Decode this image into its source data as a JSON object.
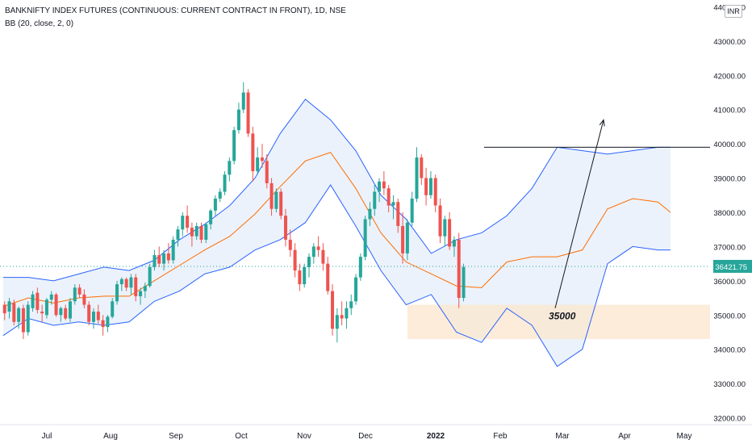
{
  "header": {
    "title": "BANKNIFTY INDEX FUTURES (CONTINUOUS: CURRENT CONTRACT IN FRONT), 1D, NSE",
    "indicator": "BB (20, close, 2, 0)",
    "currency": "INR"
  },
  "colors": {
    "up": "#26a69a",
    "down": "#ef5350",
    "band": "#2962ff",
    "basis": "#ff6d00",
    "band_fill": "#e3ecf9",
    "zone_fill": "#fbe7cf",
    "price_tag": "#26a69a",
    "grid_axis_text": "#131722"
  },
  "chart_data": {
    "type": "candlestick",
    "title": "BANKNIFTY INDEX FUTURES (CONTINUOUS: CURRENT CONTRACT IN FRONT), 1D, NSE",
    "indicator": "BB (20, close, 2, 0)",
    "y_ticks": [
      "44000.00",
      "43000.00",
      "42000.00",
      "41000.00",
      "40000.00",
      "39000.00",
      "38000.00",
      "37000.00",
      "36000.00",
      "35000.00",
      "34000.00",
      "33000.00",
      "32000.00"
    ],
    "ylim": [
      31800,
      44200
    ],
    "x_ticks": [
      "Jul",
      "Aug",
      "Sep",
      "Oct",
      "Nov",
      "Dec",
      "2022",
      "Feb",
      "Mar",
      "Apr",
      "May"
    ],
    "last_price": "36421.75",
    "last_price_value": 36421.75,
    "resistance_level": 39900,
    "support_zone": [
      34300,
      35300
    ],
    "annotation": "35000",
    "annotation_value": 35000,
    "target_arrow": {
      "from_value": 35200,
      "to_value": 40700
    },
    "bb_points": [
      [
        0,
        36100,
        34400,
        35250
      ],
      [
        10,
        36100,
        34900,
        35500
      ],
      [
        20,
        36000,
        34700,
        35350
      ],
      [
        30,
        36200,
        34800,
        35500
      ],
      [
        40,
        36400,
        34700,
        35550
      ],
      [
        50,
        36300,
        34800,
        35550
      ],
      [
        60,
        36600,
        35400,
        36000
      ],
      [
        70,
        37200,
        35700,
        36450
      ],
      [
        80,
        37650,
        36200,
        36900
      ],
      [
        90,
        38200,
        36400,
        37300
      ],
      [
        100,
        39000,
        36900,
        37950
      ],
      [
        110,
        40300,
        37200,
        38750
      ],
      [
        120,
        41300,
        37700,
        39500
      ],
      [
        130,
        40700,
        38800,
        39750
      ],
      [
        140,
        39800,
        37600,
        38700
      ],
      [
        150,
        38500,
        36300,
        37400
      ],
      [
        160,
        37800,
        35300,
        36550
      ],
      [
        170,
        36800,
        35600,
        36200
      ],
      [
        180,
        37200,
        34500,
        35850
      ],
      [
        190,
        37400,
        34200,
        35800
      ],
      [
        200,
        37900,
        35200,
        36550
      ],
      [
        210,
        38700,
        34700,
        36700
      ],
      [
        220,
        39900,
        33500,
        36700
      ],
      [
        230,
        39800,
        34000,
        36900
      ],
      [
        240,
        39700,
        36500,
        38100
      ],
      [
        250,
        39800,
        37000,
        38400
      ],
      [
        260,
        39900,
        36900,
        38300
      ],
      [
        265,
        39900,
        36900,
        38000
      ]
    ],
    "candles": [
      [
        0,
        35300,
        35400,
        34850,
        35050
      ],
      [
        2,
        35100,
        35500,
        34900,
        35400
      ],
      [
        4,
        35350,
        35450,
        34700,
        34800
      ],
      [
        6,
        34800,
        35250,
        34600,
        35200
      ],
      [
        8,
        35200,
        35300,
        34300,
        34500
      ],
      [
        10,
        34500,
        35400,
        34400,
        35300
      ],
      [
        12,
        35200,
        35700,
        35100,
        35600
      ],
      [
        14,
        35650,
        35800,
        35050,
        35150
      ],
      [
        16,
        35100,
        35300,
        34800,
        35050
      ],
      [
        18,
        35000,
        35500,
        34900,
        35450
      ],
      [
        20,
        35450,
        35700,
        35300,
        35600
      ],
      [
        22,
        35600,
        35650,
        34950,
        35000
      ],
      [
        24,
        35000,
        35250,
        34800,
        35200
      ],
      [
        26,
        35200,
        35300,
        34850,
        34900
      ],
      [
        28,
        34900,
        35500,
        34800,
        35400
      ],
      [
        30,
        35400,
        35900,
        35300,
        35800
      ],
      [
        32,
        35800,
        35900,
        35500,
        35600
      ],
      [
        34,
        35600,
        35750,
        35200,
        35300
      ],
      [
        36,
        35300,
        35400,
        34700,
        34800
      ],
      [
        38,
        34800,
        35200,
        34600,
        35100
      ],
      [
        40,
        35100,
        35300,
        34750,
        34850
      ],
      [
        42,
        34850,
        35000,
        34400,
        34650
      ],
      [
        44,
        34650,
        35000,
        34500,
        34950
      ],
      [
        46,
        34950,
        35500,
        34900,
        35400
      ],
      [
        48,
        35400,
        36000,
        35300,
        35900
      ],
      [
        50,
        35900,
        36100,
        35700,
        36050
      ],
      [
        52,
        36050,
        36100,
        35700,
        35800
      ],
      [
        54,
        35800,
        36200,
        35600,
        36100
      ],
      [
        56,
        36100,
        36200,
        35400,
        35550
      ],
      [
        58,
        35550,
        35800,
        35300,
        35700
      ],
      [
        60,
        35700,
        35950,
        35500,
        35850
      ],
      [
        62,
        35850,
        36500,
        35800,
        36400
      ],
      [
        64,
        36400,
        36900,
        36300,
        36750
      ],
      [
        66,
        36750,
        37000,
        36400,
        36500
      ],
      [
        68,
        36500,
        36900,
        36300,
        36800
      ],
      [
        70,
        36800,
        37100,
        36500,
        36600
      ],
      [
        72,
        36600,
        37300,
        36500,
        37200
      ],
      [
        74,
        37200,
        37600,
        37000,
        37500
      ],
      [
        76,
        37500,
        38000,
        37300,
        37900
      ],
      [
        78,
        37900,
        38200,
        37400,
        37550
      ],
      [
        80,
        37550,
        37700,
        37000,
        37300
      ],
      [
        82,
        37300,
        37700,
        37200,
        37600
      ],
      [
        84,
        37600,
        37700,
        37100,
        37200
      ],
      [
        86,
        37200,
        37700,
        37100,
        37650
      ],
      [
        88,
        37650,
        38100,
        37500,
        38050
      ],
      [
        90,
        38050,
        38500,
        37900,
        38400
      ],
      [
        92,
        38400,
        38700,
        38300,
        38600
      ],
      [
        94,
        38600,
        39200,
        38500,
        39100
      ],
      [
        96,
        39100,
        39600,
        38900,
        39500
      ],
      [
        98,
        39500,
        40500,
        39400,
        40400
      ],
      [
        100,
        40400,
        41200,
        40300,
        41000
      ],
      [
        102,
        41000,
        41800,
        40900,
        41500
      ],
      [
        104,
        41500,
        41600,
        40200,
        40300
      ],
      [
        106,
        40300,
        40500,
        38900,
        39200
      ],
      [
        108,
        39200,
        39900,
        39100,
        39600
      ],
      [
        110,
        39600,
        40000,
        39300,
        39500
      ],
      [
        112,
        39500,
        39700,
        38700,
        38850
      ],
      [
        114,
        38850,
        39000,
        37900,
        38100
      ],
      [
        116,
        38100,
        38700,
        38000,
        38600
      ],
      [
        118,
        38600,
        38700,
        37800,
        37900
      ],
      [
        120,
        37900,
        38100,
        37000,
        37200
      ],
      [
        122,
        37200,
        37500,
        36700,
        36900
      ],
      [
        124,
        36900,
        37100,
        36100,
        36300
      ],
      [
        126,
        36300,
        36500,
        35700,
        35900
      ],
      [
        128,
        35900,
        36500,
        35800,
        36400
      ],
      [
        130,
        36400,
        36800,
        36100,
        36700
      ],
      [
        132,
        36700,
        37100,
        36500,
        37000
      ],
      [
        134,
        37000,
        37300,
        36700,
        36900
      ],
      [
        136,
        36900,
        37100,
        36300,
        36500
      ],
      [
        138,
        36500,
        36700,
        35600,
        35700
      ],
      [
        140,
        35700,
        35900,
        34400,
        34600
      ],
      [
        142,
        34600,
        35200,
        34200,
        35000
      ],
      [
        144,
        35000,
        35400,
        34700,
        34900
      ],
      [
        146,
        34900,
        35400,
        34600,
        35200
      ],
      [
        148,
        35200,
        35600,
        35000,
        35400
      ],
      [
        150,
        35400,
        36200,
        35300,
        36100
      ],
      [
        152,
        36100,
        36800,
        36000,
        36700
      ],
      [
        154,
        36700,
        37900,
        36600,
        37800
      ],
      [
        156,
        37800,
        38300,
        37600,
        38100
      ],
      [
        158,
        38100,
        38800,
        37900,
        38600
      ],
      [
        160,
        38600,
        39000,
        38300,
        38900
      ],
      [
        162,
        38900,
        39200,
        38500,
        38700
      ],
      [
        164,
        38700,
        38800,
        38000,
        38200
      ],
      [
        166,
        38200,
        38500,
        37800,
        38300
      ],
      [
        168,
        38300,
        38400,
        37400,
        37600
      ],
      [
        170,
        37600,
        38000,
        36500,
        36800
      ],
      [
        172,
        36800,
        37800,
        36600,
        37700
      ],
      [
        174,
        37700,
        38600,
        37600,
        38400
      ],
      [
        176,
        38400,
        39900,
        38300,
        39600
      ],
      [
        178,
        39600,
        39700,
        38800,
        39000
      ],
      [
        180,
        39000,
        39300,
        38200,
        38500
      ],
      [
        182,
        38500,
        39200,
        38400,
        39000
      ],
      [
        184,
        39000,
        39100,
        38000,
        38200
      ],
      [
        186,
        38200,
        38400,
        37100,
        37300
      ],
      [
        188,
        37300,
        37900,
        37000,
        37800
      ],
      [
        190,
        37800,
        38000,
        36900,
        37000
      ],
      [
        192,
        37000,
        37300,
        36700,
        37200
      ],
      [
        194,
        37200,
        37400,
        35200,
        35500
      ],
      [
        196,
        35500,
        36500,
        35400,
        36400
      ]
    ],
    "candle_x_step": 1,
    "x_tick_positions": [
      15,
      41,
      67,
      93,
      119,
      145,
      172,
      198,
      224,
      250,
      276
    ],
    "x_domain": [
      0,
      282
    ]
  }
}
